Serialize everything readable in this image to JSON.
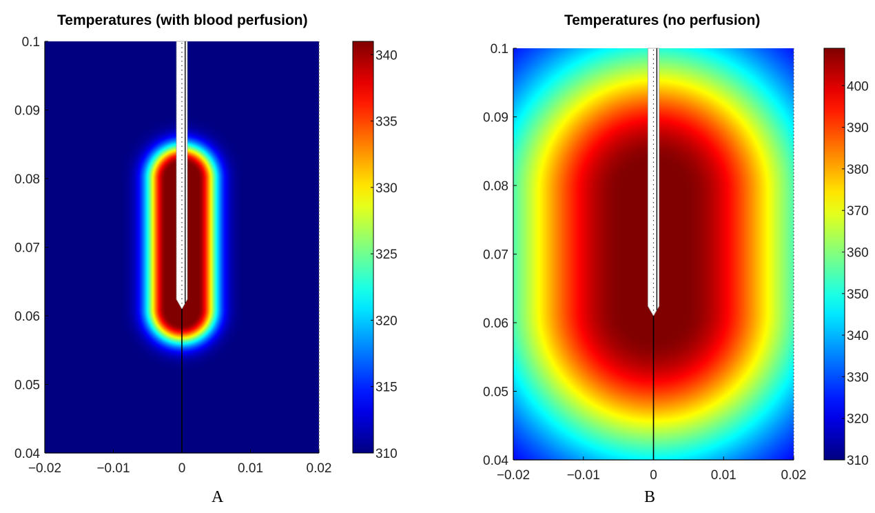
{
  "chart_data": [
    {
      "type": "heatmap",
      "panel_label": "A",
      "title": "Temperatures (with blood perfusion)",
      "xlabel": "",
      "ylabel": "",
      "xlim": [
        -0.02,
        0.02
      ],
      "ylim": [
        0.04,
        0.1
      ],
      "x_ticks": [
        {
          "value": -0.02,
          "label": "−0.02"
        },
        {
          "value": -0.01,
          "label": "−0.01"
        },
        {
          "value": 0,
          "label": "0"
        },
        {
          "value": 0.01,
          "label": "0.01"
        },
        {
          "value": 0.02,
          "label": "0.02"
        }
      ],
      "y_ticks": [
        {
          "value": 0.04,
          "label": "0.04"
        },
        {
          "value": 0.05,
          "label": "0.05"
        },
        {
          "value": 0.06,
          "label": "0.06"
        },
        {
          "value": 0.07,
          "label": "0.07"
        },
        {
          "value": 0.08,
          "label": "0.08"
        },
        {
          "value": 0.09,
          "label": "0.09"
        },
        {
          "value": 0.1,
          "label": "0.1"
        }
      ],
      "colorbar": {
        "range": [
          310,
          341
        ],
        "ticks": [
          {
            "value": 310,
            "label": "310"
          },
          {
            "value": 315,
            "label": "315"
          },
          {
            "value": 320,
            "label": "320"
          },
          {
            "value": 325,
            "label": "325"
          },
          {
            "value": 330,
            "label": "330"
          },
          {
            "value": 335,
            "label": "335"
          },
          {
            "value": 340,
            "label": "340"
          }
        ],
        "colormap": "jet"
      },
      "field": {
        "hot_zone_y": [
          0.061,
          0.08
        ],
        "hot_zone_halfwidth": 0.0023,
        "decay_length": 0.0028,
        "peak": 341,
        "ambient": 310
      },
      "probe": {
        "x": 0,
        "y_tip": 0.061,
        "y_top": 0.1,
        "halfwidth": 0.0008
      },
      "grid": false
    },
    {
      "type": "heatmap",
      "panel_label": "B",
      "title": "Temperatures (no perfusion)",
      "xlabel": "",
      "ylabel": "",
      "xlim": [
        -0.02,
        0.02
      ],
      "ylim": [
        0.04,
        0.1
      ],
      "x_ticks": [
        {
          "value": -0.02,
          "label": "−0.02"
        },
        {
          "value": -0.01,
          "label": "−0.01"
        },
        {
          "value": 0,
          "label": "0"
        },
        {
          "value": 0.01,
          "label": "0.01"
        },
        {
          "value": 0.02,
          "label": "0.02"
        }
      ],
      "y_ticks": [
        {
          "value": 0.04,
          "label": "0.04"
        },
        {
          "value": 0.05,
          "label": "0.05"
        },
        {
          "value": 0.06,
          "label": "0.06"
        },
        {
          "value": 0.07,
          "label": "0.07"
        },
        {
          "value": 0.08,
          "label": "0.08"
        },
        {
          "value": 0.09,
          "label": "0.09"
        },
        {
          "value": 0.1,
          "label": "0.1"
        }
      ],
      "colorbar": {
        "range": [
          310,
          409
        ],
        "ticks": [
          {
            "value": 310,
            "label": "310"
          },
          {
            "value": 320,
            "label": "320"
          },
          {
            "value": 330,
            "label": "330"
          },
          {
            "value": 340,
            "label": "340"
          },
          {
            "value": 350,
            "label": "350"
          },
          {
            "value": 360,
            "label": "360"
          },
          {
            "value": 370,
            "label": "370"
          },
          {
            "value": 380,
            "label": "380"
          },
          {
            "value": 390,
            "label": "390"
          },
          {
            "value": 400,
            "label": "400"
          }
        ],
        "colormap": "jet"
      },
      "field": {
        "hot_zone_y": [
          0.062,
          0.079
        ],
        "hot_zone_halfwidth": 0.004,
        "decay_length": 0.018,
        "peak": 409,
        "ambient": 310
      },
      "probe": {
        "x": 0,
        "y_tip": 0.061,
        "y_top": 0.1,
        "halfwidth": 0.0008
      },
      "grid": false
    }
  ]
}
